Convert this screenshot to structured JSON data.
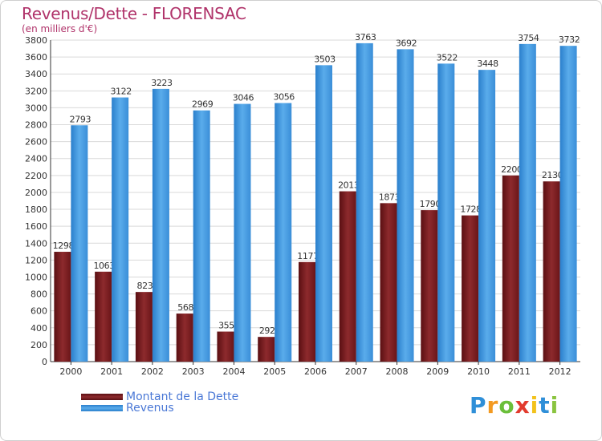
{
  "header": {
    "title": "Revenus/Dette - FLORENSAC",
    "subtitle": "(en milliers d'€)"
  },
  "logo": {
    "text": "Proxiti"
  },
  "colors": {
    "dette": "#7a1a1e",
    "revenus": "#3d95de",
    "grid": "#d9d9d9",
    "title": "#b0336a",
    "legend_text": "#4a78d6"
  },
  "chart_data": {
    "type": "bar",
    "title": "Revenus/Dette - FLORENSAC",
    "ylabel": "(en milliers d'€)",
    "xlabel": "",
    "categories": [
      "2000",
      "2001",
      "2002",
      "2003",
      "2004",
      "2005",
      "2006",
      "2007",
      "2008",
      "2009",
      "2010",
      "2011",
      "2012"
    ],
    "series": [
      {
        "name": "Montant de la Dette",
        "values": [
          1298,
          1063,
          823,
          568,
          355,
          292,
          1177,
          2013,
          1873,
          1790,
          1728,
          2200,
          2130
        ],
        "labels": [
          "1298",
          "1063",
          "823",
          "568",
          "355",
          "292",
          "1177",
          "2013",
          "1873",
          "1790",
          "1728",
          "2200",
          "2130"
        ]
      },
      {
        "name": "Revenus",
        "values": [
          2793,
          3122,
          3223,
          2969,
          3046,
          3056,
          3503,
          3763,
          3692,
          3522,
          3448,
          3754,
          3732
        ],
        "labels": [
          "2793",
          "3122",
          "3223",
          "2969",
          "3046",
          "3056",
          "3503",
          "3763",
          "3692",
          "3522",
          "3448",
          "3754",
          "3732"
        ]
      }
    ],
    "ylim": [
      0,
      3800
    ],
    "yticks": [
      "0",
      "200",
      "400",
      "600",
      "800",
      "1000",
      "1200",
      "1400",
      "1600",
      "1800",
      "2000",
      "2200",
      "2400",
      "2600",
      "2800",
      "3000",
      "3200",
      "3400",
      "3600",
      "3800"
    ],
    "grid": true,
    "legend": "bottom-left"
  }
}
